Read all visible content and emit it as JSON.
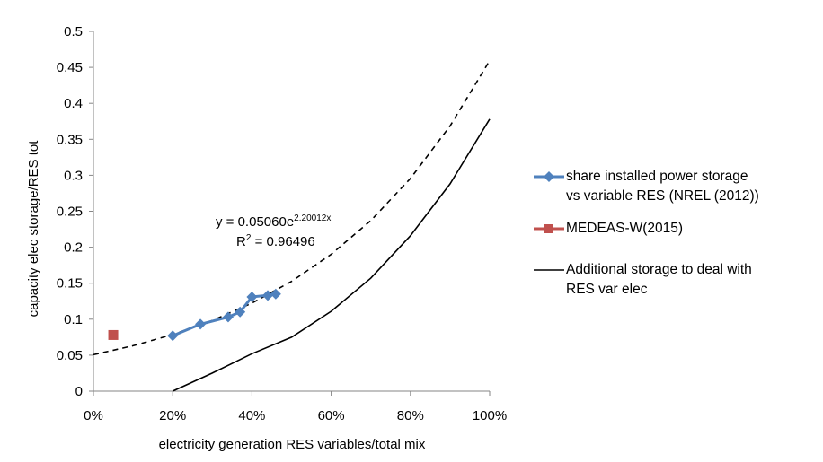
{
  "chart_data": {
    "type": "scatter",
    "title": "",
    "xlabel": "electricity generation RES variables/total mix",
    "ylabel": "capacity elec storage/RES tot",
    "xlim": [
      0,
      1
    ],
    "ylim": [
      0,
      0.5
    ],
    "x_ticks": [
      0,
      0.2,
      0.4,
      0.6,
      0.8,
      1.0
    ],
    "x_tick_labels": [
      "0%",
      "20%",
      "40%",
      "60%",
      "80%",
      "100%"
    ],
    "y_ticks": [
      0,
      0.05,
      0.1,
      0.15,
      0.2,
      0.25,
      0.3,
      0.35,
      0.4,
      0.45,
      0.5
    ],
    "y_tick_labels": [
      "0",
      "0.05",
      "0.1",
      "0.15",
      "0.2",
      "0.25",
      "0.3",
      "0.35",
      "0.4",
      "0.45",
      "0.5"
    ],
    "grid": false,
    "legend_position": "right",
    "series": [
      {
        "name": "share installed power storage vs variable RES (NREL (2012))",
        "style": "line-marker",
        "marker": "diamond",
        "color": "#4f81bd",
        "x": [
          0.2,
          0.27,
          0.34,
          0.37,
          0.4,
          0.44,
          0.46
        ],
        "y": [
          0.077,
          0.093,
          0.103,
          0.11,
          0.131,
          0.133,
          0.135
        ]
      },
      {
        "name": "MEDEAS-W(2015)",
        "style": "marker",
        "marker": "square",
        "color": "#c0504d",
        "x": [
          0.05
        ],
        "y": [
          0.078
        ]
      },
      {
        "name": "Additional storage to deal with RES var elec",
        "style": "line",
        "color": "#000000",
        "x": [
          0.2,
          0.3,
          0.4,
          0.5,
          0.6,
          0.7,
          0.8,
          0.9,
          1.0
        ],
        "y": [
          0.0,
          0.025,
          0.052,
          0.075,
          0.111,
          0.157,
          0.216,
          0.288,
          0.378
        ]
      },
      {
        "name": "exponential trendline",
        "style": "dashed",
        "color": "#000000",
        "x": [
          0,
          0.1,
          0.2,
          0.3,
          0.4,
          0.5,
          0.6,
          0.7,
          0.8,
          0.9,
          1.0
        ],
        "y": [
          0.0506,
          0.0631,
          0.0787,
          0.0981,
          0.1223,
          0.1525,
          0.1901,
          0.237,
          0.2955,
          0.3684,
          0.4593
        ]
      }
    ],
    "annotations": [
      {
        "text_parts": [
          "y = 0.05060e",
          "2.20012x"
        ],
        "label": "trendline equation"
      },
      {
        "text_parts": [
          "R",
          "2",
          " = 0.96496"
        ],
        "label": "r squared"
      }
    ]
  },
  "legend": {
    "items": [
      {
        "line1": "share installed power storage",
        "line2": "vs variable RES (NREL (2012))"
      },
      {
        "line1": "MEDEAS-W(2015)",
        "line2": ""
      },
      {
        "line1": "Additional storage to deal with",
        "line2": "RES var elec"
      }
    ]
  }
}
